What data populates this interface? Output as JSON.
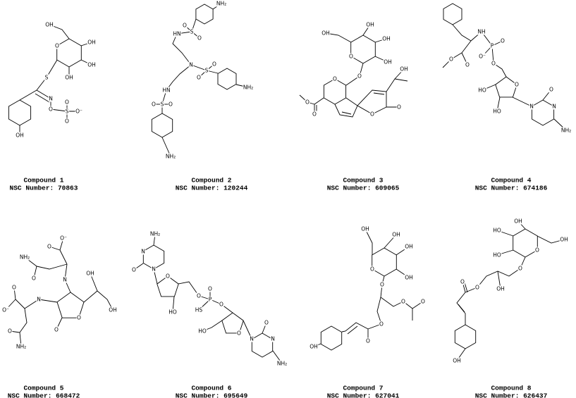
{
  "compounds": [
    {
      "caption": "Compound 1",
      "nsc": "NSC Number: 70863",
      "atoms": [
        "OH",
        "O",
        "OH",
        "OH",
        "OH",
        "S",
        "N",
        "O",
        "S",
        "O",
        "O",
        "O⁻",
        "OH"
      ]
    },
    {
      "caption": "Compound 2",
      "nsc": "NSC Number: 120244",
      "atoms": [
        "NH₂",
        "O",
        "S",
        "O",
        "HN",
        "N",
        "S",
        "O",
        "O",
        "NH₂",
        "HN",
        "O",
        "S",
        "O",
        "NH₂"
      ]
    },
    {
      "caption": "Compound 3",
      "nsc": "NSC Number: 609065",
      "atoms": [
        "OH",
        "O",
        "OH",
        "OH",
        "OH",
        "O",
        "O",
        "O",
        "O",
        "O",
        "O",
        "OH"
      ]
    },
    {
      "caption": "Compound 4",
      "nsc": "NSC Number: 674186",
      "atoms": [
        "NH",
        "P",
        "O",
        "O⁻",
        "O",
        "O",
        "O",
        "O",
        "HO",
        "HO",
        "N",
        "O",
        "N",
        "NH₂"
      ]
    },
    {
      "caption": "Compound 5",
      "nsc": "NSC Number: 668472",
      "atoms": [
        "O⁻",
        "NH₂",
        "O",
        "O",
        "N",
        "O",
        "O⁻",
        "N",
        "OH",
        "OH",
        "O",
        "O",
        "O",
        "NH₂"
      ]
    },
    {
      "caption": "Compound 6",
      "nsc": "NSC Number: 695649",
      "atoms": [
        "NH₂",
        "N",
        "O",
        "N",
        "O",
        "HO",
        "O",
        "P",
        "O",
        "HS",
        "O",
        "O",
        "HO",
        "N",
        "O",
        "N",
        "NH₂"
      ]
    },
    {
      "caption": "Compound 7",
      "nsc": "NSC Number: 627041",
      "atoms": [
        "OH",
        "O",
        "OH",
        "OH",
        "OH",
        "O",
        "O",
        "O",
        "O",
        "O",
        "OH"
      ]
    },
    {
      "caption": "Compound 8",
      "nsc": "NSC Number: 626437",
      "atoms": [
        "OH",
        "HO",
        "HO",
        "O",
        "OH",
        "O",
        "OH",
        "O",
        "O",
        "OH"
      ]
    }
  ]
}
